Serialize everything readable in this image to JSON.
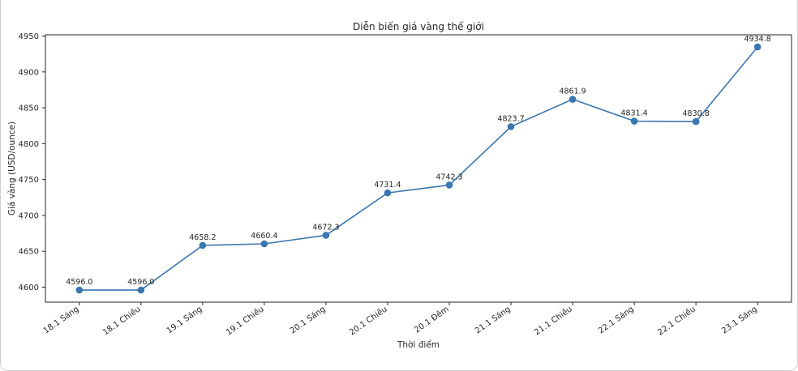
{
  "figure": {
    "background": "#ffffff",
    "border_color": "#cfcfcf"
  },
  "chart_data": {
    "type": "line",
    "title": "Diễn biến giá vàng thế giới",
    "xlabel": "Thời điểm",
    "ylabel": "Giá vàng (USD/ounce)",
    "categories": [
      "18.1 Sáng",
      "18.1 Chiều",
      "19.1 Sáng",
      "19.1 Chiều",
      "20.1 Sáng",
      "20.1 Chiều",
      "20.1 Đêm",
      "21.1 Sáng",
      "21.1 Chiều",
      "22.1 Sáng",
      "22.1 Chiều",
      "23.1 Sáng"
    ],
    "values": [
      4596.0,
      4596.0,
      4658.2,
      4660.4,
      4672.3,
      4731.4,
      4742.3,
      4823.7,
      4861.9,
      4831.4,
      4830.8,
      4934.8
    ],
    "data_labels": [
      "4596.0",
      "4596.0",
      "4658.2",
      "4660.4",
      "4672.3",
      "4731.4",
      "4742.3",
      "4823.7",
      "4861.9",
      "4831.4",
      "4830.8",
      "4934.8"
    ],
    "y_ticks": [
      4600,
      4650,
      4700,
      4750,
      4800,
      4850,
      4900,
      4950
    ],
    "ylim": [
      4579.1,
      4951.7
    ],
    "x_tick_rotation": 35,
    "grid": false,
    "legend": null,
    "line_color": "#3b76af",
    "marker": "circle",
    "axis_color": "#262626",
    "text_color": "#262626"
  }
}
